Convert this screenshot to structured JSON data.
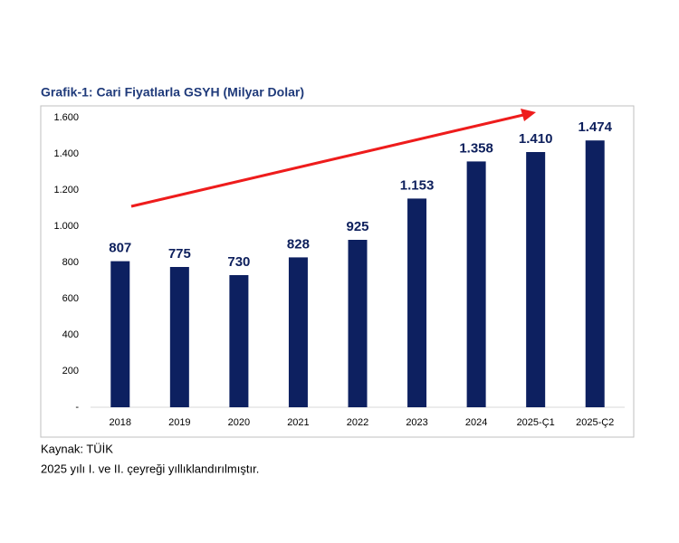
{
  "chart_data": {
    "type": "bar",
    "title": "Grafik-1: Cari Fiyatlarla GSYH (Milyar Dolar)",
    "categories": [
      "2018",
      "2019",
      "2020",
      "2021",
      "2022",
      "2023",
      "2024",
      "2025-Ç1",
      "2025-Ç2"
    ],
    "values": [
      807,
      775,
      730,
      828,
      925,
      1153,
      1358,
      1410,
      1474
    ],
    "value_labels": [
      "807",
      "775",
      "730",
      "828",
      "925",
      "1.153",
      "1.358",
      "1.410",
      "1.474"
    ],
    "color": "#0d2060",
    "ylim": [
      0,
      1600
    ],
    "yticks": [
      {
        "value": 0,
        "label": "-"
      },
      200,
      400,
      600,
      800,
      {
        "value": 1000,
        "label": "1.000"
      },
      {
        "value": 1200,
        "label": "1.200"
      },
      {
        "value": 1400,
        "label": "1.400"
      },
      {
        "value": 1600,
        "label": "1.600"
      }
    ],
    "grid": false,
    "source": "Kaynak: TÜİK",
    "note": "2025 yılı I. ve II. çeyreği yıllıklandırılmıştır."
  }
}
